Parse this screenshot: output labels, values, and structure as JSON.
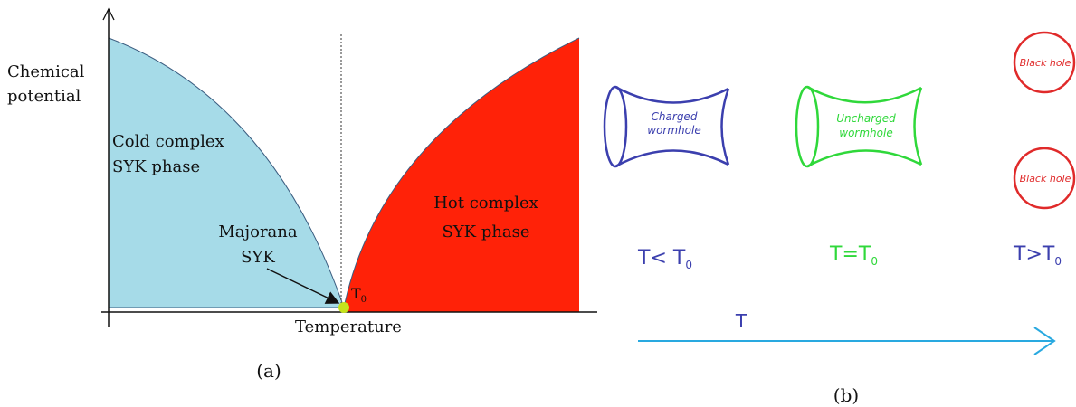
{
  "panel_a": {
    "y_axis_label": [
      "Chemical",
      "potential"
    ],
    "x_axis_label": "Temperature",
    "cold_region": [
      "Cold complex",
      "SYK phase"
    ],
    "hot_region": [
      "Hot complex",
      "SYK phase"
    ],
    "critical_point": [
      "Majorana",
      "SYK"
    ],
    "critical_temperature": {
      "main": "T",
      "sub": "0"
    },
    "caption": "(a)"
  },
  "panel_b": {
    "stages": [
      {
        "object": [
          "Charged",
          "wormhole"
        ],
        "condition": {
          "main": "T< T",
          "sub": "0"
        }
      },
      {
        "object": [
          "Uncharged",
          "wormhole"
        ],
        "condition": {
          "main": "T=T",
          "sub": "0"
        }
      },
      {
        "objects": [
          [
            "Black hole"
          ],
          [
            "Black hole"
          ]
        ],
        "condition": {
          "main": "T>T",
          "sub": "0"
        }
      }
    ],
    "axis_label": "T",
    "caption": "(b)"
  }
}
